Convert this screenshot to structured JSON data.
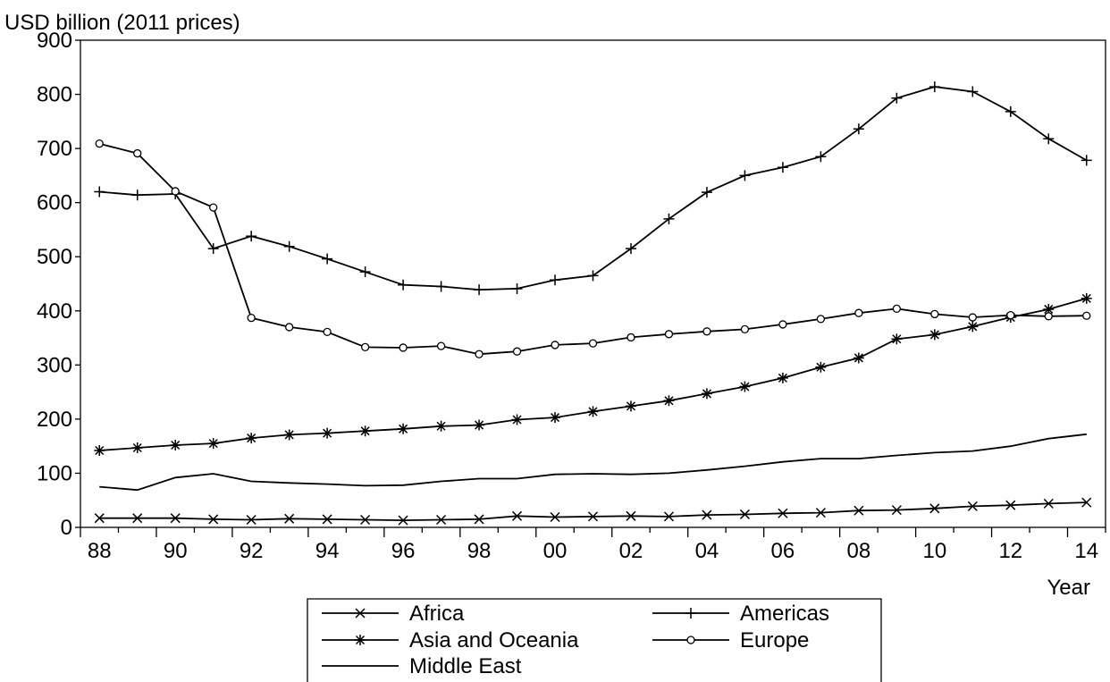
{
  "chart_data": {
    "type": "line",
    "ylabel": "USD billion (2011 prices)",
    "xlabel": "Year",
    "ylim": [
      0,
      900
    ],
    "yticks": [
      0,
      100,
      200,
      300,
      400,
      500,
      600,
      700,
      800,
      900
    ],
    "x": [
      "88",
      "89",
      "90",
      "91",
      "92",
      "93",
      "94",
      "95",
      "96",
      "97",
      "98",
      "99",
      "00",
      "01",
      "02",
      "03",
      "04",
      "05",
      "06",
      "07",
      "08",
      "09",
      "10",
      "11",
      "12",
      "13",
      "14"
    ],
    "xtick_labels": [
      "88",
      "90",
      "92",
      "94",
      "96",
      "98",
      "00",
      "02",
      "04",
      "06",
      "08",
      "10",
      "12",
      "14"
    ],
    "grid": false,
    "legend_position": "bottom",
    "series": [
      {
        "name": "Africa",
        "marker": "x",
        "values": [
          17,
          17,
          17,
          15,
          14,
          16,
          15,
          14,
          13,
          14,
          15,
          21,
          19,
          20,
          21,
          20,
          23,
          24,
          26,
          27,
          31,
          32,
          35,
          39,
          41,
          44,
          46
        ]
      },
      {
        "name": "Americas",
        "marker": "plus",
        "values": [
          620,
          614,
          616,
          515,
          538,
          519,
          496,
          472,
          448,
          445,
          439,
          441,
          457,
          465,
          515,
          570,
          619,
          650,
          665,
          685,
          736,
          793,
          814,
          805,
          768,
          718,
          678
        ]
      },
      {
        "name": "Asia and Oceania",
        "marker": "star",
        "values": [
          142,
          147,
          152,
          155,
          165,
          171,
          174,
          178,
          182,
          187,
          189,
          199,
          203,
          214,
          224,
          234,
          247,
          260,
          276,
          296,
          313,
          348,
          356,
          371,
          388,
          403,
          423
        ]
      },
      {
        "name": "Europe",
        "marker": "circle",
        "values": [
          709,
          691,
          621,
          591,
          387,
          370,
          361,
          333,
          332,
          335,
          320,
          325,
          337,
          340,
          351,
          357,
          362,
          366,
          375,
          385,
          396,
          404,
          394,
          388,
          392,
          390,
          391
        ]
      },
      {
        "name": "Middle East",
        "marker": "none",
        "values": [
          75,
          69,
          92,
          99,
          85,
          82,
          80,
          77,
          78,
          85,
          90,
          90,
          98,
          99,
          98,
          100,
          106,
          113,
          121,
          127,
          127,
          133,
          138,
          141,
          150,
          164,
          172
        ]
      }
    ]
  }
}
